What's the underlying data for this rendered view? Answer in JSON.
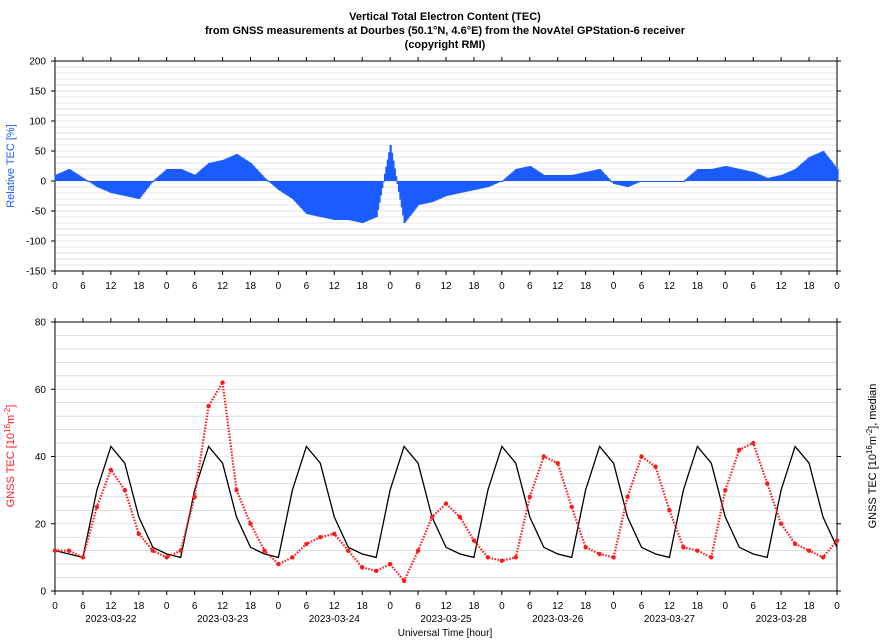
{
  "title": {
    "line1": "Vertical Total Electron Content (TEC)",
    "line2": "from GNSS measurements at Dourbes (50.1°N, 4.6°E) from the NovAtel GPStation-6 receiver",
    "line3": "(copyright RMI)"
  },
  "colors": {
    "relative": "#1a5cff",
    "tec": "#ff1a1a",
    "median": "#000000"
  },
  "chart_data": [
    {
      "type": "area",
      "ylabel": "Relative TEC [%]",
      "ylim": [
        -150,
        200
      ],
      "yticks": [
        -150,
        -100,
        -50,
        0,
        50,
        100,
        150,
        200
      ],
      "xlim": [
        0,
        168
      ],
      "xtick_labels": [
        "0",
        "6",
        "12",
        "18",
        "0",
        "6",
        "12",
        "18",
        "0",
        "6",
        "12",
        "18",
        "0",
        "6",
        "12",
        "18",
        "0",
        "6",
        "12",
        "18",
        "0",
        "6",
        "12",
        "18",
        "0",
        "6",
        "12",
        "18",
        "0"
      ],
      "grid": true,
      "series": [
        {
          "name": "Relative TEC",
          "x": [
            0,
            3,
            6,
            9,
            12,
            15,
            18,
            21,
            24,
            27,
            30,
            33,
            36,
            39,
            42,
            45,
            48,
            51,
            54,
            57,
            60,
            63,
            66,
            69,
            72,
            75,
            78,
            81,
            84,
            87,
            90,
            93,
            96,
            99,
            102,
            105,
            108,
            111,
            114,
            117,
            120,
            123,
            126,
            129,
            132,
            135,
            138,
            141,
            144,
            147,
            150,
            153,
            156,
            159,
            162,
            165,
            168
          ],
          "values": [
            10,
            20,
            5,
            -10,
            -20,
            -25,
            -30,
            0,
            20,
            20,
            10,
            30,
            35,
            45,
            30,
            5,
            -15,
            -30,
            -55,
            -60,
            -65,
            -65,
            -70,
            -60,
            60,
            -70,
            -40,
            -35,
            -25,
            -20,
            -15,
            -10,
            0,
            20,
            25,
            10,
            10,
            10,
            15,
            20,
            -5,
            -10,
            0,
            0,
            0,
            0,
            20,
            20,
            25,
            20,
            15,
            5,
            10,
            20,
            40,
            50,
            20
          ]
        }
      ]
    },
    {
      "type": "line",
      "ylabel": "GNSS TEC [10",
      "ylabel_sup": "16",
      "ylabel_unit": "m",
      "ylabel_sup2": "-2",
      "ylabel_end": "]",
      "y2label": "GNSS TEC [10",
      "y2label_sup": "16",
      "y2label_unit": "m",
      "y2label_sup2": "-2",
      "y2label_end": "], median",
      "xlabel": "Universal Time [hour]",
      "ylim": [
        0,
        80
      ],
      "yticks": [
        0,
        20,
        40,
        60,
        80
      ],
      "xlim": [
        0,
        168
      ],
      "xtick_labels": [
        "0",
        "6",
        "12",
        "18",
        "0",
        "6",
        "12",
        "18",
        "0",
        "6",
        "12",
        "18",
        "0",
        "6",
        "12",
        "18",
        "0",
        "6",
        "12",
        "18",
        "0",
        "6",
        "12",
        "18",
        "0",
        "6",
        "12",
        "18",
        "0"
      ],
      "dates": [
        "2023-03-22",
        "2023-03-23",
        "2023-03-24",
        "2023-03-25",
        "2023-03-26",
        "2023-03-27",
        "2023-03-28"
      ],
      "grid": true,
      "series": [
        {
          "name": "median",
          "x": [
            0,
            3,
            6,
            9,
            12,
            15,
            18,
            21,
            24,
            27,
            30,
            33,
            36,
            39,
            42,
            45,
            48,
            51,
            54,
            57,
            60,
            63,
            66,
            69,
            72,
            75,
            78,
            81,
            84,
            87,
            90,
            93,
            96,
            99,
            102,
            105,
            108,
            111,
            114,
            117,
            120,
            123,
            126,
            129,
            132,
            135,
            138,
            141,
            144,
            147,
            150,
            153,
            156,
            159,
            162,
            165,
            168
          ],
          "values": [
            12,
            11,
            10,
            30,
            43,
            38,
            22,
            13,
            11,
            10,
            30,
            43,
            38,
            22,
            13,
            11,
            10,
            30,
            43,
            38,
            22,
            13,
            11,
            10,
            30,
            43,
            38,
            22,
            13,
            11,
            10,
            30,
            43,
            38,
            22,
            13,
            11,
            10,
            30,
            43,
            38,
            22,
            13,
            11,
            10,
            30,
            43,
            38,
            22,
            13,
            11,
            10,
            30,
            43,
            38,
            22,
            13
          ]
        },
        {
          "name": "GNSS TEC",
          "x": [
            0,
            3,
            6,
            9,
            12,
            15,
            18,
            21,
            24,
            27,
            30,
            33,
            36,
            39,
            42,
            45,
            48,
            51,
            54,
            57,
            60,
            63,
            66,
            69,
            72,
            75,
            78,
            81,
            84,
            87,
            90,
            93,
            96,
            99,
            102,
            105,
            108,
            111,
            114,
            117,
            120,
            123,
            126,
            129,
            132,
            135,
            138,
            141,
            144,
            147,
            150,
            153,
            156,
            159,
            162,
            165,
            168
          ],
          "values": [
            12,
            12,
            10,
            25,
            36,
            30,
            17,
            12,
            10,
            12,
            28,
            55,
            62,
            30,
            20,
            12,
            8,
            10,
            14,
            16,
            17,
            12,
            7,
            6,
            8,
            3,
            12,
            22,
            26,
            22,
            15,
            10,
            9,
            10,
            28,
            40,
            38,
            25,
            13,
            11,
            10,
            28,
            40,
            37,
            24,
            13,
            12,
            10,
            30,
            42,
            44,
            32,
            20,
            14,
            12,
            10,
            15
          ]
        }
      ]
    }
  ]
}
